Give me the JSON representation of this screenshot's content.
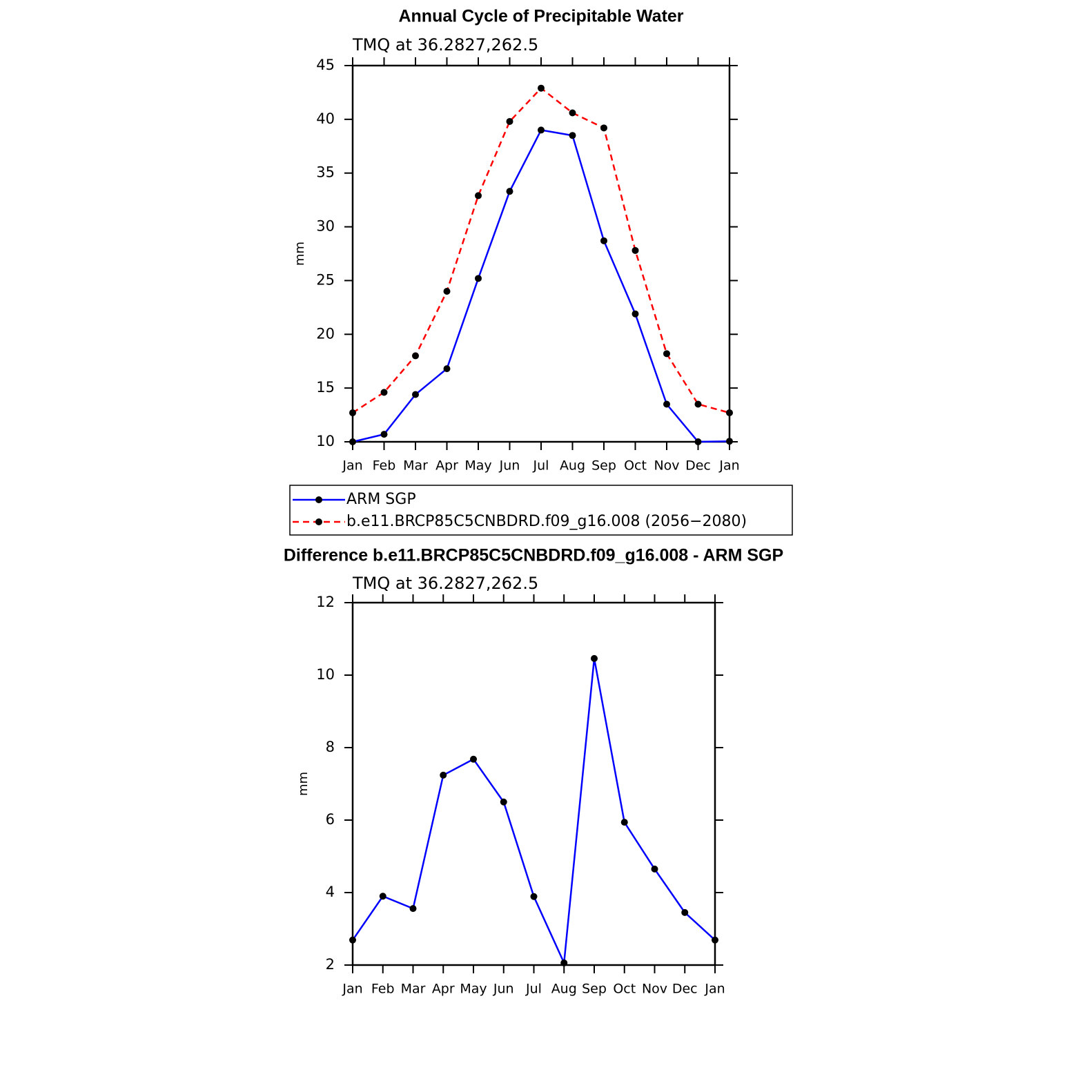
{
  "chart_data": [
    {
      "type": "line",
      "title": "Annual Cycle of Precipitable Water",
      "subtitle": "TMQ at 36.2827,262.5",
      "ylabel": "mm",
      "categories": [
        "Jan",
        "Feb",
        "Mar",
        "Apr",
        "May",
        "Jun",
        "Jul",
        "Aug",
        "Sep",
        "Oct",
        "Nov",
        "Dec",
        "Jan"
      ],
      "series": [
        {
          "name": "ARM SGP",
          "color": "#0000ff",
          "line_style": "solid",
          "values": [
            10.0,
            10.7,
            14.4,
            16.8,
            25.2,
            33.3,
            39.0,
            38.5,
            28.7,
            21.9,
            13.5,
            10.0,
            10.05
          ]
        },
        {
          "name": "b.e11.BRCP85C5CNBDRD.f09_g16.008 (2056−2080)",
          "color": "#ff0000",
          "line_style": "dashed",
          "values": [
            12.7,
            14.6,
            18.0,
            24.0,
            32.9,
            39.8,
            42.9,
            40.6,
            39.2,
            27.8,
            18.2,
            13.5,
            12.7
          ]
        }
      ],
      "ylim": [
        10,
        45
      ],
      "yticks": [
        10,
        15,
        20,
        25,
        30,
        35,
        40,
        45
      ],
      "legend": "below",
      "grid": false
    },
    {
      "type": "line",
      "title": "Difference b.e11.BRCP85C5CNBDRD.f09_g16.008 - ARM SGP",
      "subtitle": "TMQ at 36.2827,262.5",
      "ylabel": "mm",
      "categories": [
        "Jan",
        "Feb",
        "Mar",
        "Apr",
        "May",
        "Jun",
        "Jul",
        "Aug",
        "Sep",
        "Oct",
        "Nov",
        "Dec",
        "Jan"
      ],
      "series": [
        {
          "color": "#0000ff",
          "line_style": "solid",
          "values": [
            2.69,
            3.9,
            3.56,
            7.24,
            7.68,
            6.5,
            3.89,
            2.06,
            10.46,
            5.94,
            4.65,
            3.45,
            2.69
          ]
        }
      ],
      "ylim": [
        2,
        12
      ],
      "yticks": [
        2,
        4,
        6,
        8,
        10,
        12
      ],
      "grid": false
    }
  ]
}
